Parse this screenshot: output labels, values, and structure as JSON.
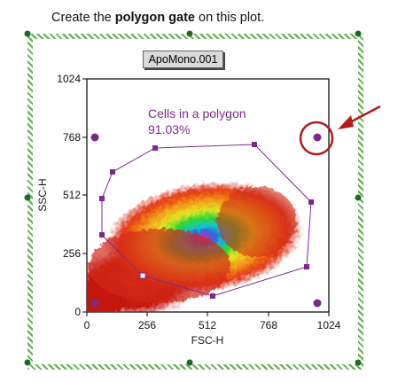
{
  "instruction": {
    "prefix": "Create the ",
    "bold": "polygon gate",
    "suffix": " on this plot."
  },
  "plot": {
    "title": "ApoMono.001",
    "x_axis_label": "FSC-H",
    "y_axis_label": "SSC-H",
    "x_ticks": [
      "0",
      "256",
      "512",
      "768",
      "1024"
    ],
    "y_ticks": [
      "0",
      "256",
      "512",
      "768",
      "1024"
    ]
  },
  "gate": {
    "label": "Cells in a polygon",
    "percent": "91.03%",
    "color": "#7a2a8a"
  },
  "annotation": {
    "color": "#b01c1c"
  },
  "chart_data": {
    "type": "scatter",
    "title": "ApoMono.001",
    "xlabel": "FSC-H",
    "ylabel": "SSC-H",
    "xlim": [
      0,
      1024
    ],
    "ylim": [
      0,
      1024
    ],
    "density_center": [
      525,
      320
    ],
    "gate_vertices": [
      [
        115,
        610
      ],
      [
        295,
        720
      ],
      [
        700,
        735
      ],
      [
        940,
        485
      ],
      [
        925,
        200
      ],
      [
        540,
        70
      ],
      [
        250,
        160
      ],
      [
        70,
        330
      ],
      [
        110,
        485
      ]
    ],
    "gate_percent": 91.03,
    "corner_markers": [
      [
        35,
        765
      ],
      [
        965,
        765
      ],
      [
        35,
        35
      ],
      [
        965,
        35
      ]
    ]
  }
}
